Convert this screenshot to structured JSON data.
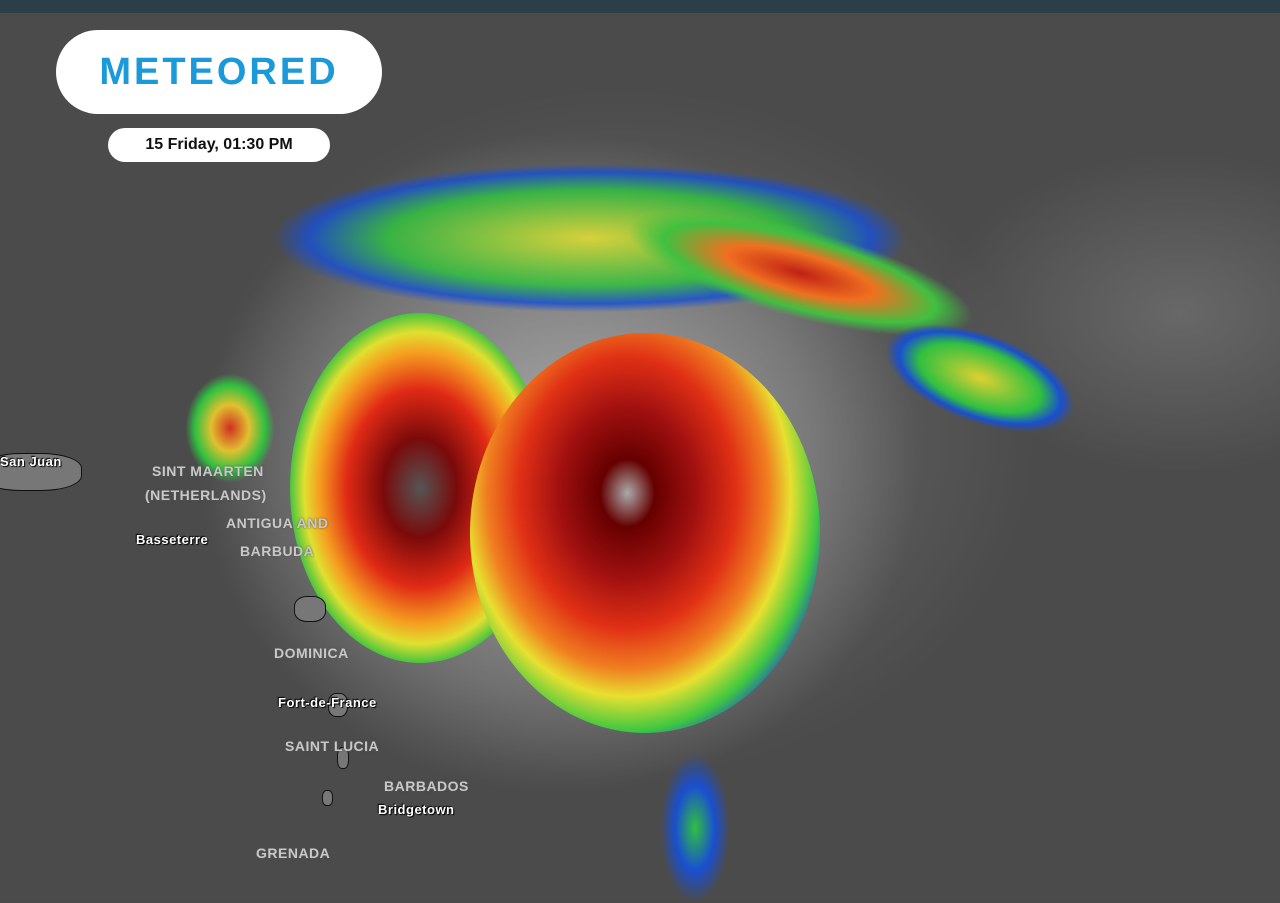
{
  "brand": {
    "logo_text": "METEORED",
    "logo_color": "#1a9ad9"
  },
  "timestamp": "15 Friday, 01:30 PM",
  "map_labels": {
    "cities": [
      "San Juan",
      "Basseterre",
      "Fort-de-France",
      "Bridgetown"
    ],
    "countries": [
      "SINT MAARTEN",
      "(NETHERLANDS)",
      "ANTIGUA AND",
      "BARBUDA",
      "DOMINICA",
      "SAINT LUCIA",
      "BARBADOS",
      "GRENADA"
    ]
  },
  "imagery": {
    "colors": {
      "cold_top": "#8b0000",
      "heavy": "#e52a1a",
      "moderate": "#f0e020",
      "light": "#30d040",
      "edge": "#1a4fd0",
      "cloud": "#d8d8d8",
      "background": "#4b4b4b"
    }
  }
}
